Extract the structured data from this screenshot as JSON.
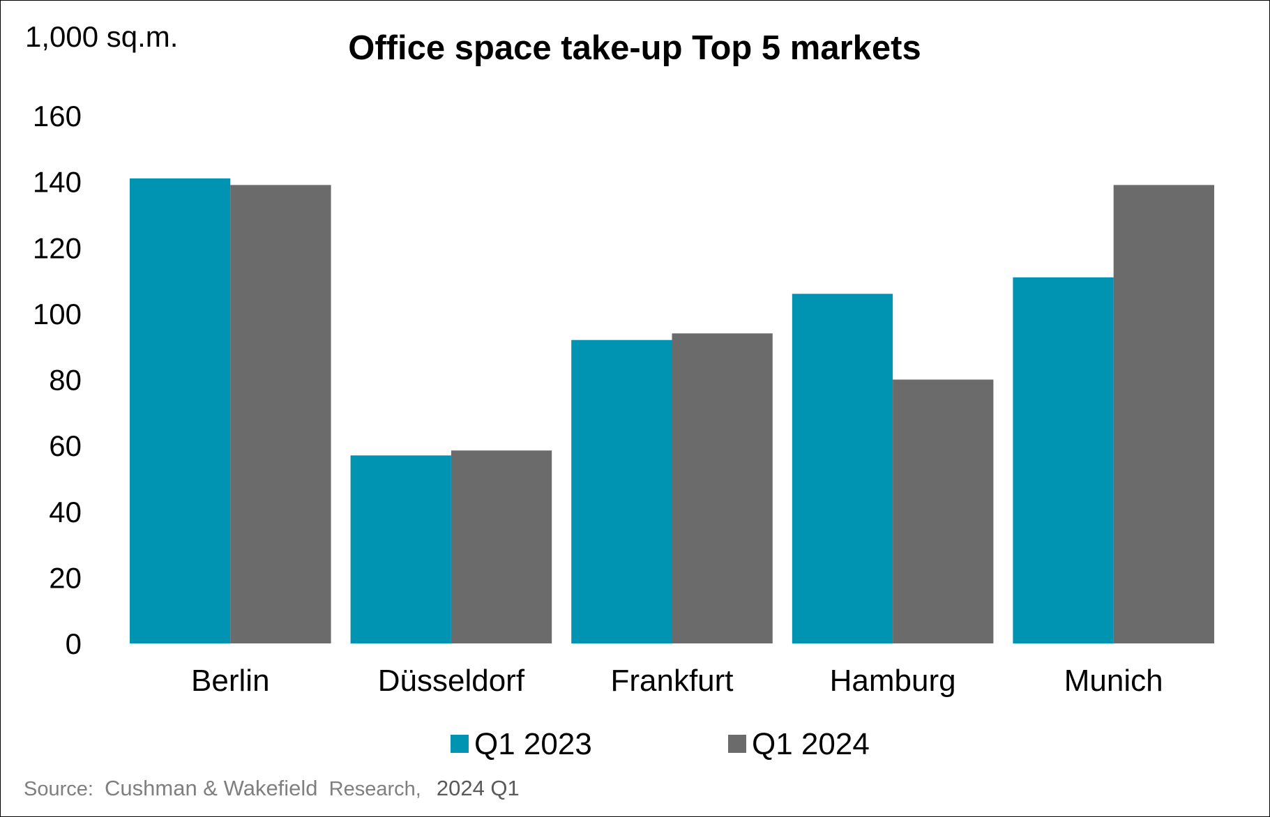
{
  "chart_data": {
    "type": "bar",
    "title": "Office space take-up Top 5 markets",
    "unit_label": "1,000 sq.m.",
    "xlabel": "",
    "ylabel": "",
    "categories": [
      "Berlin",
      "Düsseldorf",
      "Frankfurt",
      "Hamburg",
      "Munich"
    ],
    "series": [
      {
        "name": "Q1 2023",
        "color": "#0093b2",
        "values": [
          141,
          57,
          92,
          106,
          111
        ]
      },
      {
        "name": "Q1 2024",
        "color": "#6a6b6a",
        "values": [
          139,
          58.5,
          94,
          80,
          139
        ]
      }
    ],
    "ylim": [
      0,
      160
    ],
    "yticks": [
      "0",
      "20",
      "40",
      "60",
      "80",
      "100",
      "120",
      "140",
      "160"
    ],
    "grid": false,
    "legend_position": "bottom",
    "source": {
      "prefix": "Source:",
      "name": "Cushman & Wakefield",
      "suffix": "Research,",
      "period": "2024 Q1"
    }
  }
}
